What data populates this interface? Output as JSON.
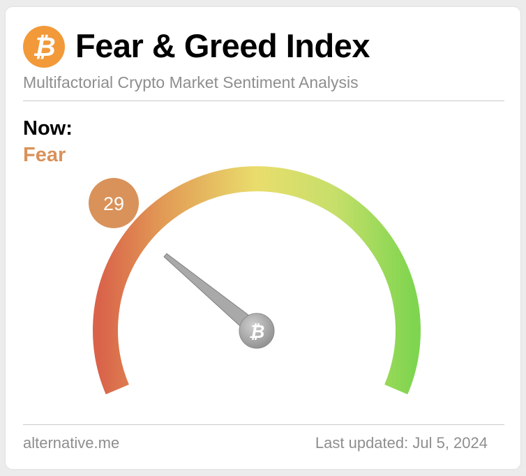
{
  "header": {
    "title": "Fear & Greed Index",
    "subtitle": "Multifactorial Crypto Market Sentiment Analysis",
    "logo_icon": "bitcoin-icon",
    "logo_color": "#f2993a"
  },
  "status": {
    "now_label": "Now:",
    "classification": "Fear",
    "classification_color": "#d9925a"
  },
  "gauge": {
    "value": "29",
    "min": 0,
    "max": 100,
    "badge_color": "#d9925a",
    "needle_hub_icon": "bitcoin-icon",
    "colors": {
      "extreme_fear": "#d9634a",
      "fear": "#e9a65a",
      "neutral": "#e9dd6c",
      "greed": "#b6dd6a",
      "extreme_greed": "#7fd54f"
    }
  },
  "footer": {
    "source": "alternative.me",
    "last_updated": "Last updated: Jul 5, 2024"
  }
}
